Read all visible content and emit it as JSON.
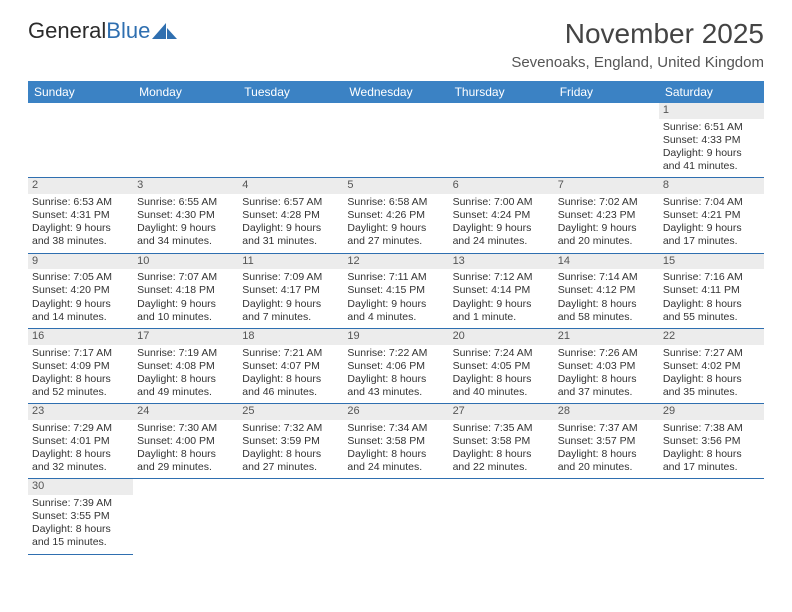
{
  "logo": {
    "text_dark": "General",
    "text_blue": "Blue"
  },
  "title": "November 2025",
  "location": "Sevenoaks, England, United Kingdom",
  "colors": {
    "header_bg": "#3b82c4",
    "header_text": "#ffffff",
    "daynum_bg": "#ececec",
    "rule": "#2f6fb0",
    "body_text": "#333333"
  },
  "day_headers": [
    "Sunday",
    "Monday",
    "Tuesday",
    "Wednesday",
    "Thursday",
    "Friday",
    "Saturday"
  ],
  "weeks": [
    [
      null,
      null,
      null,
      null,
      null,
      null,
      {
        "n": "1",
        "sr": "6:51 AM",
        "ss": "4:33 PM",
        "dl": "9 hours and 41 minutes."
      }
    ],
    [
      {
        "n": "2",
        "sr": "6:53 AM",
        "ss": "4:31 PM",
        "dl": "9 hours and 38 minutes."
      },
      {
        "n": "3",
        "sr": "6:55 AM",
        "ss": "4:30 PM",
        "dl": "9 hours and 34 minutes."
      },
      {
        "n": "4",
        "sr": "6:57 AM",
        "ss": "4:28 PM",
        "dl": "9 hours and 31 minutes."
      },
      {
        "n": "5",
        "sr": "6:58 AM",
        "ss": "4:26 PM",
        "dl": "9 hours and 27 minutes."
      },
      {
        "n": "6",
        "sr": "7:00 AM",
        "ss": "4:24 PM",
        "dl": "9 hours and 24 minutes."
      },
      {
        "n": "7",
        "sr": "7:02 AM",
        "ss": "4:23 PM",
        "dl": "9 hours and 20 minutes."
      },
      {
        "n": "8",
        "sr": "7:04 AM",
        "ss": "4:21 PM",
        "dl": "9 hours and 17 minutes."
      }
    ],
    [
      {
        "n": "9",
        "sr": "7:05 AM",
        "ss": "4:20 PM",
        "dl": "9 hours and 14 minutes."
      },
      {
        "n": "10",
        "sr": "7:07 AM",
        "ss": "4:18 PM",
        "dl": "9 hours and 10 minutes."
      },
      {
        "n": "11",
        "sr": "7:09 AM",
        "ss": "4:17 PM",
        "dl": "9 hours and 7 minutes."
      },
      {
        "n": "12",
        "sr": "7:11 AM",
        "ss": "4:15 PM",
        "dl": "9 hours and 4 minutes."
      },
      {
        "n": "13",
        "sr": "7:12 AM",
        "ss": "4:14 PM",
        "dl": "9 hours and 1 minute."
      },
      {
        "n": "14",
        "sr": "7:14 AM",
        "ss": "4:12 PM",
        "dl": "8 hours and 58 minutes."
      },
      {
        "n": "15",
        "sr": "7:16 AM",
        "ss": "4:11 PM",
        "dl": "8 hours and 55 minutes."
      }
    ],
    [
      {
        "n": "16",
        "sr": "7:17 AM",
        "ss": "4:09 PM",
        "dl": "8 hours and 52 minutes."
      },
      {
        "n": "17",
        "sr": "7:19 AM",
        "ss": "4:08 PM",
        "dl": "8 hours and 49 minutes."
      },
      {
        "n": "18",
        "sr": "7:21 AM",
        "ss": "4:07 PM",
        "dl": "8 hours and 46 minutes."
      },
      {
        "n": "19",
        "sr": "7:22 AM",
        "ss": "4:06 PM",
        "dl": "8 hours and 43 minutes."
      },
      {
        "n": "20",
        "sr": "7:24 AM",
        "ss": "4:05 PM",
        "dl": "8 hours and 40 minutes."
      },
      {
        "n": "21",
        "sr": "7:26 AM",
        "ss": "4:03 PM",
        "dl": "8 hours and 37 minutes."
      },
      {
        "n": "22",
        "sr": "7:27 AM",
        "ss": "4:02 PM",
        "dl": "8 hours and 35 minutes."
      }
    ],
    [
      {
        "n": "23",
        "sr": "7:29 AM",
        "ss": "4:01 PM",
        "dl": "8 hours and 32 minutes."
      },
      {
        "n": "24",
        "sr": "7:30 AM",
        "ss": "4:00 PM",
        "dl": "8 hours and 29 minutes."
      },
      {
        "n": "25",
        "sr": "7:32 AM",
        "ss": "3:59 PM",
        "dl": "8 hours and 27 minutes."
      },
      {
        "n": "26",
        "sr": "7:34 AM",
        "ss": "3:58 PM",
        "dl": "8 hours and 24 minutes."
      },
      {
        "n": "27",
        "sr": "7:35 AM",
        "ss": "3:58 PM",
        "dl": "8 hours and 22 minutes."
      },
      {
        "n": "28",
        "sr": "7:37 AM",
        "ss": "3:57 PM",
        "dl": "8 hours and 20 minutes."
      },
      {
        "n": "29",
        "sr": "7:38 AM",
        "ss": "3:56 PM",
        "dl": "8 hours and 17 minutes."
      }
    ],
    [
      {
        "n": "30",
        "sr": "7:39 AM",
        "ss": "3:55 PM",
        "dl": "8 hours and 15 minutes."
      },
      null,
      null,
      null,
      null,
      null,
      null
    ]
  ],
  "labels": {
    "sunrise": "Sunrise:",
    "sunset": "Sunset:",
    "daylight": "Daylight:"
  }
}
